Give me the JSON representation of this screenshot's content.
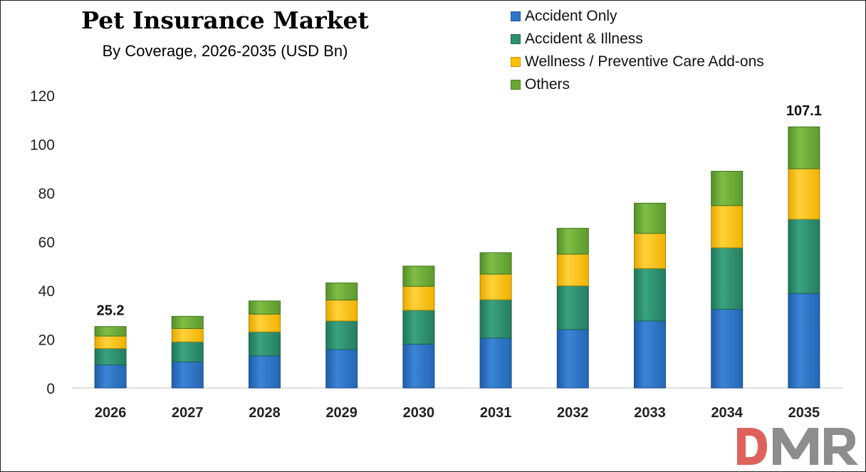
{
  "chart_data": {
    "type": "bar",
    "stacked": true,
    "title": "Pet Insurance Market",
    "subtitle": "By Coverage, 2026-2035 (USD Bn)",
    "categories": [
      "2026",
      "2027",
      "2028",
      "2029",
      "2030",
      "2031",
      "2032",
      "2033",
      "2034",
      "2035"
    ],
    "series": [
      {
        "name": "Accident Only",
        "color": "#2e75c8",
        "values": [
          9.5,
          10.7,
          13.2,
          15.8,
          18.0,
          20.5,
          24.0,
          27.5,
          32.3,
          38.8
        ]
      },
      {
        "name": "Accident & Illness",
        "color": "#2e9070",
        "values": [
          6.7,
          8.2,
          9.8,
          11.7,
          13.9,
          15.7,
          17.9,
          21.5,
          25.2,
          30.4
        ]
      },
      {
        "name": "Wellness / Preventive Care Add-ons",
        "color": "#ffc000",
        "values": [
          5.1,
          5.5,
          7.3,
          8.6,
          9.8,
          10.5,
          13.0,
          14.4,
          17.3,
          20.7
        ]
      },
      {
        "name": "Others",
        "color": "#6aa834",
        "values": [
          3.9,
          5.0,
          5.4,
          7.0,
          8.3,
          8.8,
          10.6,
          12.4,
          14.1,
          17.2
        ]
      }
    ],
    "totals_labels": {
      "2026": "25.2",
      "2035": "107.1"
    },
    "ylim": [
      0,
      120
    ],
    "yticks": [
      0,
      20,
      40,
      60,
      80,
      100,
      120
    ],
    "grid": false,
    "legend": "top-right",
    "xlabel": "",
    "ylabel": ""
  },
  "logo": {
    "text": "DMR"
  }
}
